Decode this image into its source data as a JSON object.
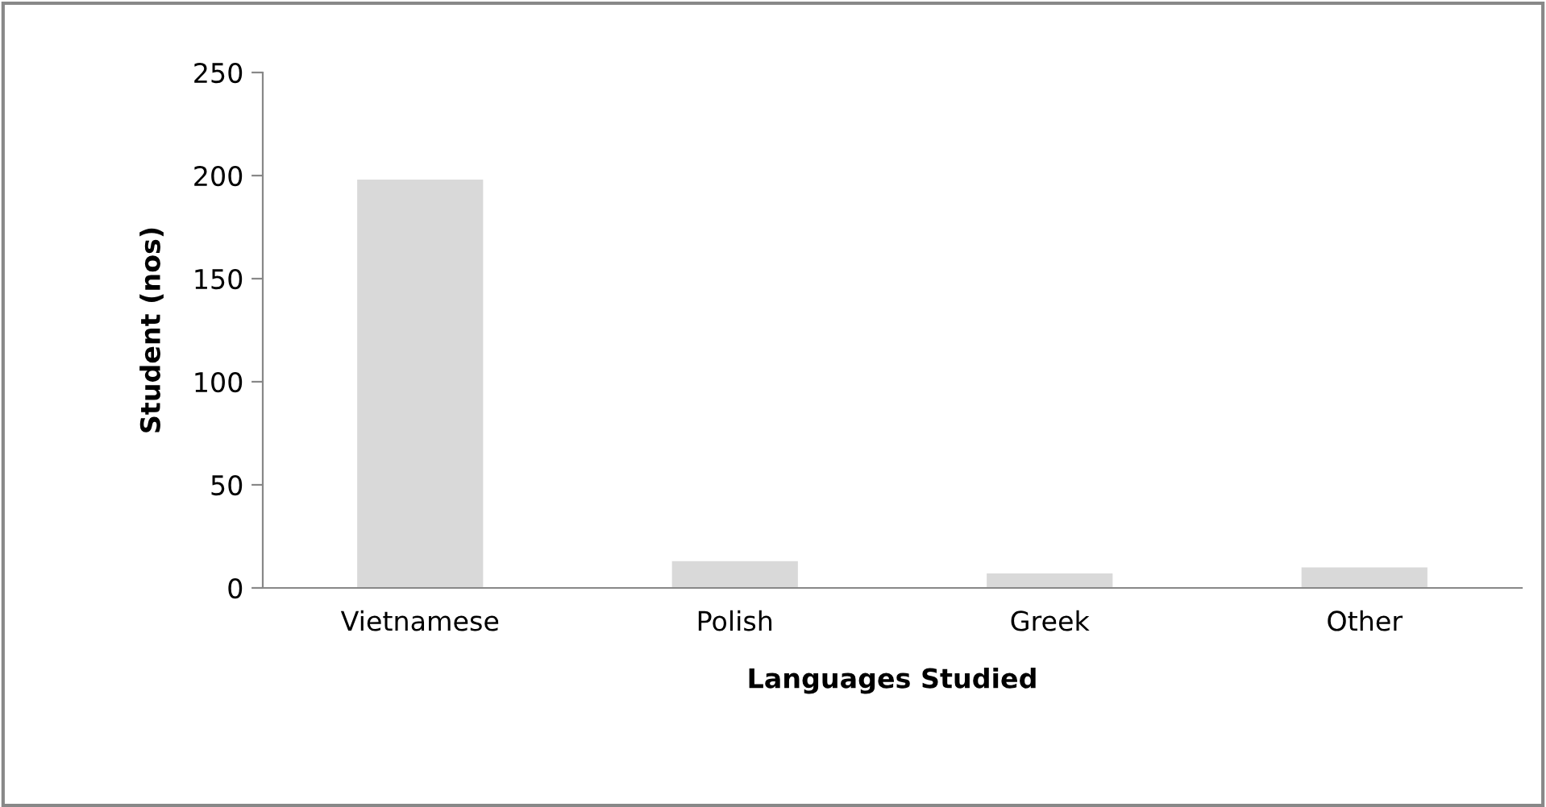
{
  "chart_data": {
    "type": "bar",
    "xlabel": "Languages Studied",
    "ylabel": "Student (nos)",
    "categories": [
      "Vietnamese",
      "Polish",
      "Greek",
      "Other"
    ],
    "values": [
      198,
      13,
      7,
      10
    ],
    "color": "#d9d9d9",
    "ylim": [
      0,
      250
    ],
    "yticks": [
      0,
      50,
      100,
      150,
      200,
      250
    ],
    "grid": false,
    "legend": false
  }
}
